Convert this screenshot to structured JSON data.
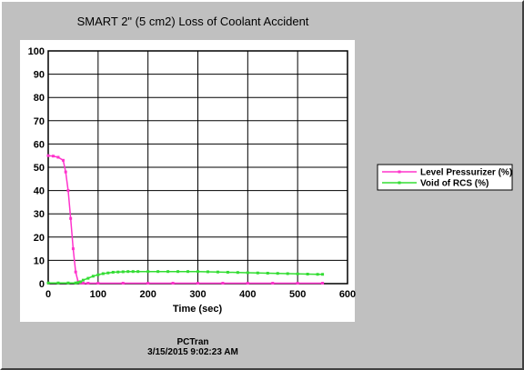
{
  "chart_data": {
    "type": "line",
    "title": "SMART 2\" (5 cm2) Loss of Coolant Accident",
    "xlabel": "Time (sec)",
    "ylabel": "",
    "xlim": [
      0,
      600
    ],
    "ylim": [
      0,
      100
    ],
    "xticks": [
      "0",
      "100",
      "200",
      "300",
      "400",
      "500",
      "600"
    ],
    "yticks": [
      "0",
      "10",
      "20",
      "30",
      "40",
      "50",
      "60",
      "70",
      "80",
      "90",
      "100"
    ],
    "grid": true,
    "legend_position": "right",
    "series": [
      {
        "name": "Level Pressurizer (%)",
        "color": "#ff33cc",
        "x": [
          0,
          10,
          20,
          30,
          35,
          40,
          45,
          50,
          55,
          60,
          65,
          70,
          80,
          100,
          150,
          200,
          250,
          300,
          350,
          400,
          450,
          500,
          550
        ],
        "y": [
          55,
          54.8,
          54.3,
          53,
          48,
          40,
          28,
          15,
          5,
          0.8,
          0.3,
          0.2,
          0.2,
          0.2,
          0.2,
          0.2,
          0.2,
          0.2,
          0.2,
          0.2,
          0.2,
          0.2,
          0.2
        ]
      },
      {
        "name": "Void of RCS (%)",
        "color": "#33dd33",
        "x": [
          0,
          20,
          40,
          55,
          60,
          65,
          70,
          80,
          90,
          100,
          110,
          120,
          130,
          140,
          150,
          160,
          170,
          180,
          200,
          220,
          240,
          260,
          280,
          300,
          320,
          340,
          360,
          380,
          400,
          420,
          440,
          460,
          480,
          500,
          520,
          540,
          550
        ],
        "y": [
          0.3,
          0.3,
          0.3,
          0.3,
          0.5,
          0.8,
          1.5,
          2.3,
          3.2,
          3.8,
          4.3,
          4.6,
          4.9,
          5.0,
          5.1,
          5.2,
          5.2,
          5.2,
          5.2,
          5.2,
          5.2,
          5.2,
          5.2,
          5.2,
          5.1,
          5.0,
          4.9,
          4.8,
          4.7,
          4.6,
          4.5,
          4.4,
          4.3,
          4.2,
          4.1,
          4.0,
          4.0
        ]
      }
    ]
  },
  "footer": {
    "app_name": "PCTran",
    "timestamp": "3/15/2015 9:02:23 AM"
  }
}
